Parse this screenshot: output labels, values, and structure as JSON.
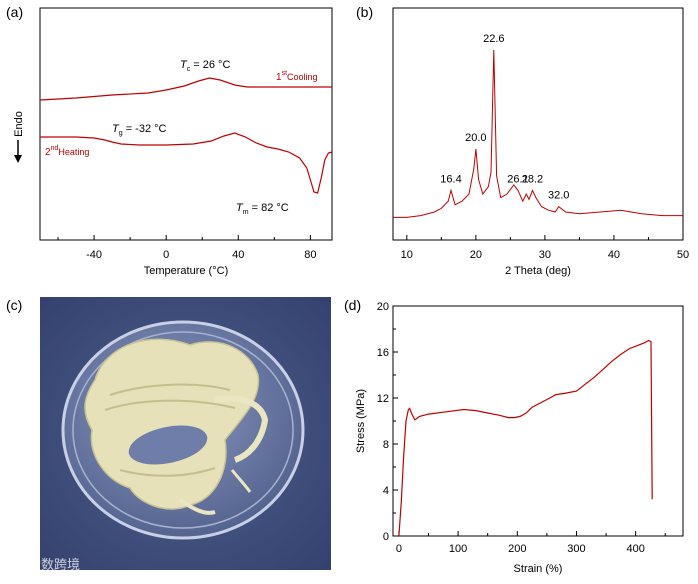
{
  "panels": {
    "a": "(a)",
    "b": "(b)",
    "c": "(c)",
    "d": "(d)"
  },
  "watermark": "大数跨境",
  "colors": {
    "curve": "#c00000",
    "axis": "#000000",
    "photo_bg": "#3f4f7f",
    "dish": "#6c7ca6",
    "material": "#e8e3b8"
  },
  "chart_data": [
    {
      "id": "dsc",
      "type": "line",
      "xlabel": "Temperature (°C)",
      "ylabel": "Endo",
      "xlim": [
        -70,
        92
      ],
      "xticks": [
        -40,
        0,
        40,
        80
      ],
      "series": [
        {
          "name": "1st Cooling",
          "label_main": "1",
          "label_sup": "st",
          "label_sub": "Cooling",
          "x": [
            -70,
            -50,
            -30,
            -10,
            0,
            10,
            18,
            24,
            30,
            38,
            45,
            50,
            60,
            70,
            80,
            92
          ],
          "y": [
            100,
            98,
            95,
            93,
            90,
            86,
            81,
            78,
            80,
            85,
            87,
            87,
            87,
            87,
            87,
            87
          ]
        },
        {
          "name": "2nd Heating",
          "label_main": "2",
          "label_sup": "nd",
          "label_sub": "Heating",
          "x": [
            -70,
            -50,
            -40,
            -34,
            -30,
            -25,
            -15,
            0,
            15,
            25,
            32,
            38,
            44,
            50,
            56,
            62,
            68,
            74,
            78,
            80,
            82,
            84,
            86,
            88,
            90,
            92
          ],
          "y": [
            137,
            137,
            138,
            140,
            142,
            144,
            145,
            145,
            144,
            141,
            136,
            133,
            137,
            143,
            147,
            149,
            152,
            158,
            168,
            180,
            192,
            193,
            178,
            160,
            153,
            152
          ]
        }
      ],
      "annotations": [
        {
          "main": "T",
          "sub": "c",
          "rest": " = 26 °C"
        },
        {
          "main": "T",
          "sub": "g",
          "rest": " = -32 °C"
        },
        {
          "main": "T",
          "sub": "m",
          "rest": " = 82 °C"
        }
      ]
    },
    {
      "id": "xrd",
      "type": "line",
      "xlabel": "2 Theta (deg)",
      "xlim": [
        8,
        50
      ],
      "xticks": [
        10,
        20,
        30,
        40,
        50
      ],
      "peaks": [
        {
          "x": 16.4,
          "label": "16.4"
        },
        {
          "x": 20.0,
          "label": "20.0"
        },
        {
          "x": 22.6,
          "label": "22.6"
        },
        {
          "x": 26.1,
          "label": "26.1"
        },
        {
          "x": 28.2,
          "label": "28.2"
        },
        {
          "x": 32.0,
          "label": "32.0"
        }
      ],
      "series": [
        {
          "name": "XRD pattern",
          "x": [
            8,
            10,
            12,
            14,
            15,
            16,
            16.4,
            17,
            18,
            19,
            19.7,
            20.0,
            20.4,
            21,
            21.8,
            22.2,
            22.6,
            23.0,
            23.6,
            24.5,
            25.5,
            26.1,
            26.8,
            27.3,
            27.7,
            28.2,
            28.7,
            29.5,
            30.5,
            31.5,
            32.0,
            33,
            35,
            38,
            41,
            44,
            47,
            50
          ],
          "y": [
            0.07,
            0.07,
            0.08,
            0.1,
            0.12,
            0.16,
            0.22,
            0.14,
            0.16,
            0.2,
            0.34,
            0.45,
            0.28,
            0.2,
            0.24,
            0.32,
            1.0,
            0.3,
            0.18,
            0.2,
            0.25,
            0.22,
            0.16,
            0.2,
            0.17,
            0.22,
            0.18,
            0.13,
            0.11,
            0.1,
            0.13,
            0.1,
            0.09,
            0.1,
            0.11,
            0.09,
            0.08,
            0.08
          ]
        }
      ]
    },
    {
      "id": "stress-strain",
      "type": "line",
      "xlabel": "Strain (%)",
      "ylabel": "Stress (MPa)",
      "xlim": [
        -10,
        480
      ],
      "ylim": [
        0,
        20
      ],
      "xticks": [
        0,
        100,
        200,
        300,
        400
      ],
      "yticks": [
        0,
        4,
        8,
        12,
        16,
        20
      ],
      "series": [
        {
          "name": "Stress-strain",
          "x": [
            0,
            4,
            8,
            12,
            16,
            18,
            22,
            27,
            35,
            50,
            80,
            110,
            130,
            150,
            170,
            185,
            195,
            205,
            215,
            225,
            240,
            255,
            265,
            280,
            300,
            315,
            330,
            345,
            360,
            375,
            390,
            405,
            415,
            422,
            426,
            427,
            428
          ],
          "y": [
            0,
            3,
            7,
            10,
            11,
            11.1,
            10.6,
            10.1,
            10.4,
            10.6,
            10.8,
            11.0,
            10.9,
            10.7,
            10.5,
            10.3,
            10.3,
            10.4,
            10.7,
            11.2,
            11.6,
            12.0,
            12.3,
            12.4,
            12.6,
            13.2,
            13.8,
            14.5,
            15.2,
            15.8,
            16.3,
            16.6,
            16.8,
            17.0,
            16.9,
            10,
            3.2
          ]
        }
      ]
    }
  ]
}
